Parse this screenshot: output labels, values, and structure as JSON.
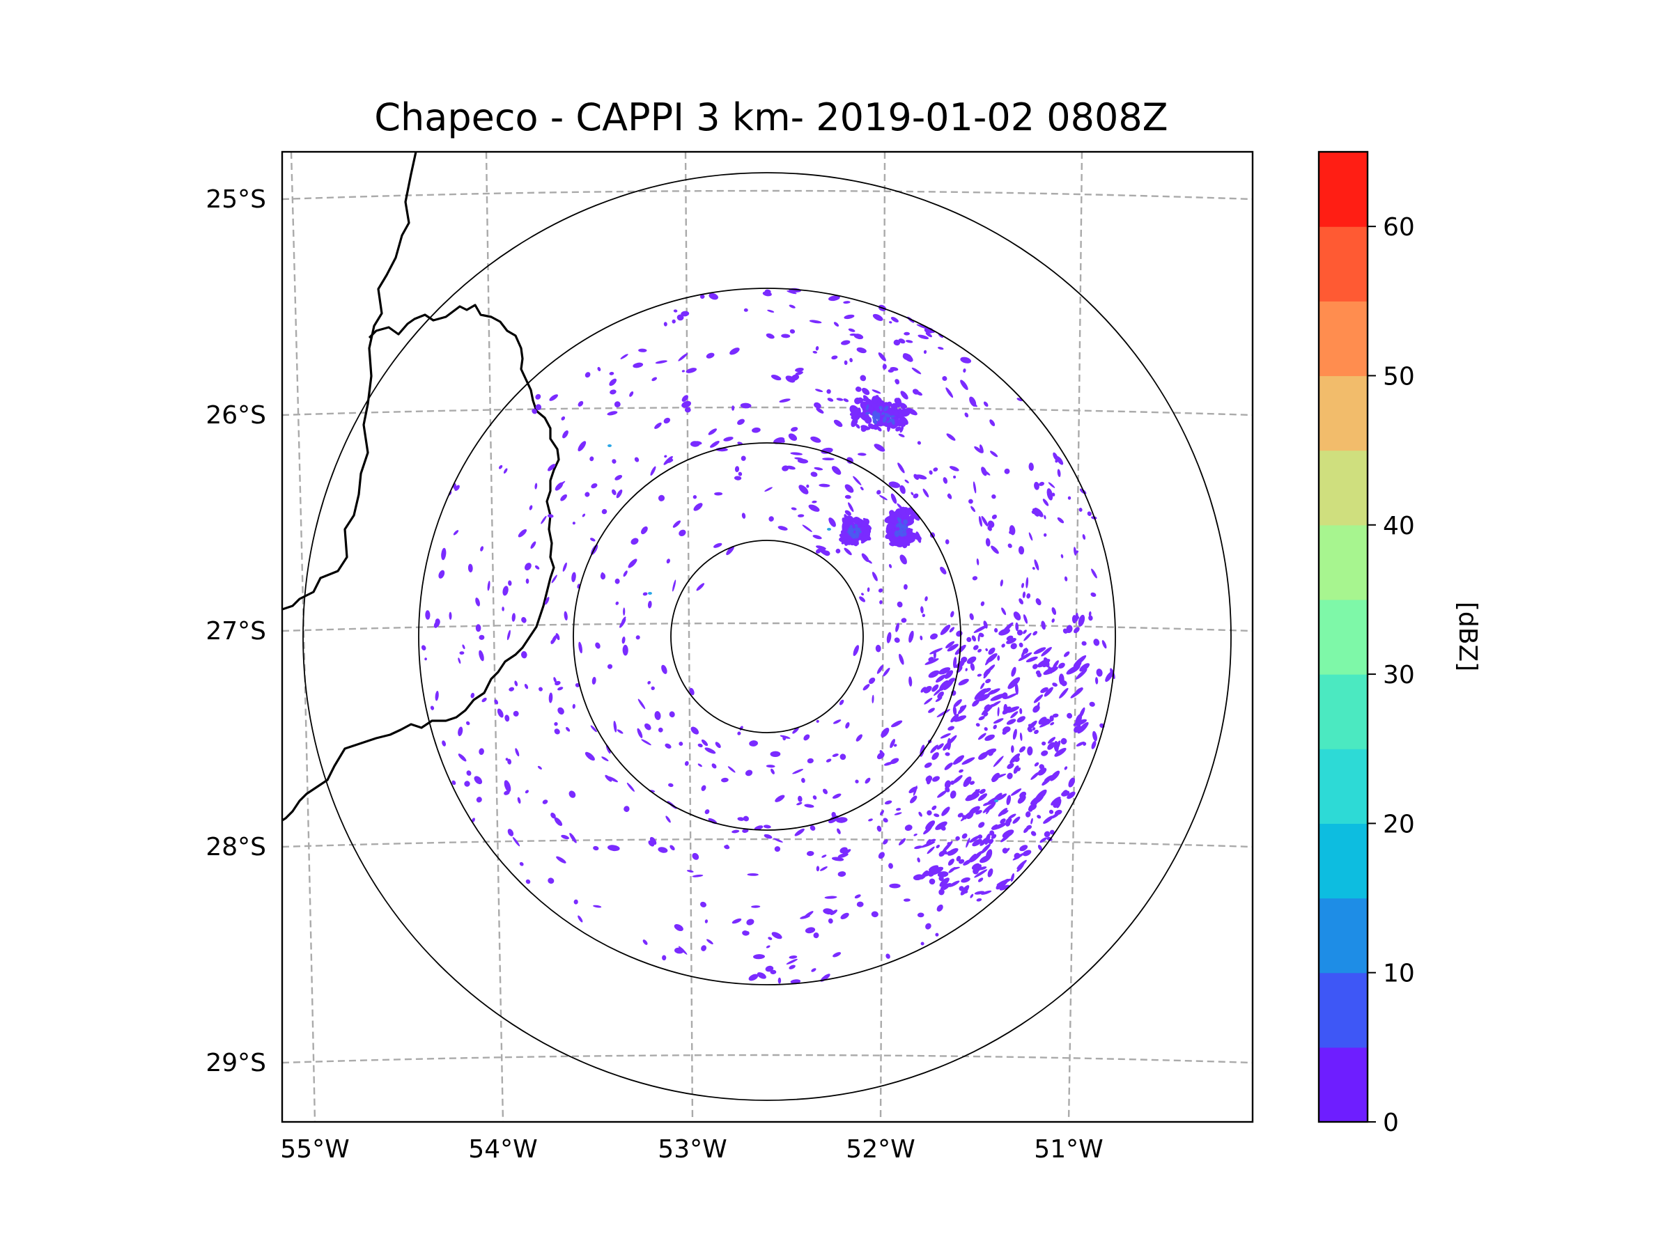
{
  "title": "Chapeco - CAPPI 3 km- 2019-01-02 0808Z",
  "map": {
    "radar_site": "Chapeco",
    "product": "CAPPI 3 km",
    "datetime": "2019-01-02 0808Z",
    "lon_labels": [
      "55°W",
      "54°W",
      "53°W",
      "52°W",
      "51°W"
    ],
    "lat_labels": [
      "25°S",
      "26°S",
      "27°S",
      "28°S",
      "29°S"
    ],
    "range_rings": 4,
    "colors": {
      "echo_main": "#7a2bff",
      "echo_mid": "#4a5bf0",
      "echo_light": "#2aa7e6",
      "gridline": "#aaaaaa",
      "border": "#000000"
    }
  },
  "colorbar": {
    "label": "[dBZ]",
    "min": 0,
    "max": 65,
    "step": 5,
    "ticks": [
      "0",
      "10",
      "20",
      "30",
      "40",
      "50",
      "60"
    ],
    "colors": [
      "#6e1eff",
      "#3e57f6",
      "#1e8de6",
      "#0dbde0",
      "#2ddad6",
      "#4be9c1",
      "#7ef8a8",
      "#a7f58f",
      "#cfdf7e",
      "#f2bc6b",
      "#ff8d4f",
      "#ff5a33",
      "#ff1e14"
    ]
  }
}
